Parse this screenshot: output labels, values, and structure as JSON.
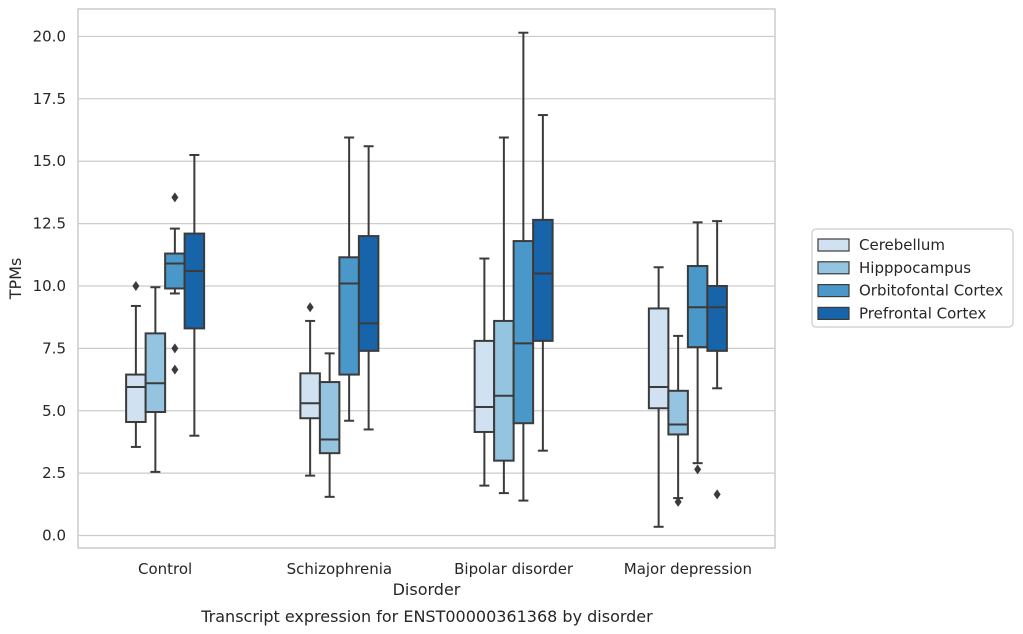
{
  "chart_data": {
    "type": "boxplot",
    "title": "",
    "caption": "Transcript expression for ENST00000361368 by disorder",
    "xlabel": "Disorder",
    "ylabel": "TPMs",
    "ylim": [
      -0.5,
      21.1
    ],
    "yticks": [
      0.0,
      2.5,
      5.0,
      7.5,
      10.0,
      12.5,
      15.0,
      17.5,
      20.0
    ],
    "ytick_labels": [
      "0.0",
      "2.5",
      "5.0",
      "7.5",
      "10.0",
      "12.5",
      "15.0",
      "17.5",
      "20.0"
    ],
    "grid": "horizontal",
    "legend_position": "right",
    "categories": [
      "Control",
      "Schizophrenia",
      "Bipolar disorder",
      "Major depression"
    ],
    "series": [
      {
        "name": "Cerebellum",
        "color": "#d0e1f2",
        "boxes": [
          {
            "whislo": 3.55,
            "q1": 4.55,
            "med": 5.95,
            "q3": 6.45,
            "whishi": 9.2,
            "fliers": [
              10.0
            ]
          },
          {
            "whislo": 2.4,
            "q1": 4.7,
            "med": 5.3,
            "q3": 6.5,
            "whishi": 8.6,
            "fliers": [
              9.15
            ]
          },
          {
            "whislo": 2.0,
            "q1": 4.15,
            "med": 5.15,
            "q3": 7.8,
            "whishi": 11.1,
            "fliers": []
          },
          {
            "whislo": 0.35,
            "q1": 5.1,
            "med": 5.95,
            "q3": 9.1,
            "whishi": 10.75,
            "fliers": []
          }
        ]
      },
      {
        "name": "Hipppocampus",
        "color": "#94c4df",
        "boxes": [
          {
            "whislo": 2.55,
            "q1": 4.95,
            "med": 6.1,
            "q3": 8.1,
            "whishi": 9.95,
            "fliers": []
          },
          {
            "whislo": 1.55,
            "q1": 3.3,
            "med": 3.85,
            "q3": 6.15,
            "whishi": 7.3,
            "fliers": []
          },
          {
            "whislo": 1.7,
            "q1": 3.0,
            "med": 5.6,
            "q3": 8.6,
            "whishi": 15.95,
            "fliers": []
          },
          {
            "whislo": 1.5,
            "q1": 4.05,
            "med": 4.45,
            "q3": 5.8,
            "whishi": 8.0,
            "fliers": [
              1.35
            ]
          }
        ]
      },
      {
        "name": "Orbitofontal Cortex",
        "color": "#4a98c9",
        "boxes": [
          {
            "whislo": 9.7,
            "q1": 9.9,
            "med": 10.9,
            "q3": 11.3,
            "whishi": 12.3,
            "fliers": [
              13.55,
              7.5,
              6.65
            ]
          },
          {
            "whislo": 4.6,
            "q1": 6.45,
            "med": 10.1,
            "q3": 11.15,
            "whishi": 15.95,
            "fliers": []
          },
          {
            "whislo": 1.4,
            "q1": 4.5,
            "med": 7.7,
            "q3": 11.8,
            "whishi": 20.15,
            "fliers": []
          },
          {
            "whislo": 2.9,
            "q1": 7.55,
            "med": 9.15,
            "q3": 10.8,
            "whishi": 12.55,
            "fliers": [
              2.65
            ]
          }
        ]
      },
      {
        "name": "Prefrontal Cortex",
        "color": "#1764ab",
        "boxes": [
          {
            "whislo": 4.0,
            "q1": 8.3,
            "med": 10.6,
            "q3": 12.1,
            "whishi": 15.25,
            "fliers": []
          },
          {
            "whislo": 4.25,
            "q1": 7.4,
            "med": 8.5,
            "q3": 12.0,
            "whishi": 15.6,
            "fliers": []
          },
          {
            "whislo": 3.4,
            "q1": 7.8,
            "med": 10.5,
            "q3": 12.65,
            "whishi": 16.85,
            "fliers": []
          },
          {
            "whislo": 5.9,
            "q1": 7.4,
            "med": 9.15,
            "q3": 10.0,
            "whishi": 12.6,
            "fliers": [
              1.65
            ]
          }
        ]
      }
    ]
  }
}
